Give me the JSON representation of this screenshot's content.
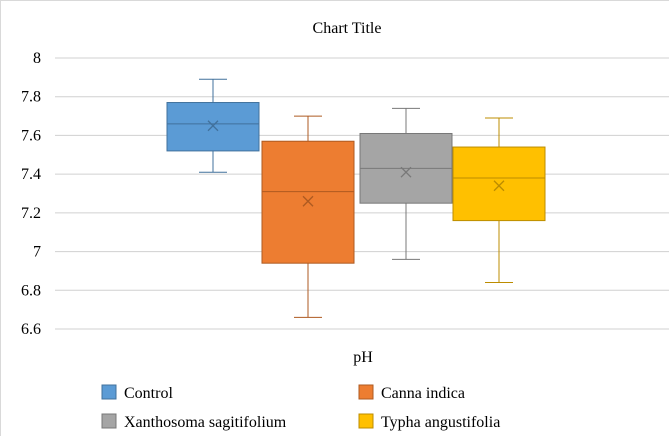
{
  "chart_data": {
    "type": "box",
    "title": "Chart Title",
    "xlabel": "pH",
    "ylabel": "",
    "ylim": [
      6.6,
      8
    ],
    "yticks": [
      "6.6",
      "6.8",
      "7",
      "7.2",
      "7.4",
      "7.6",
      "7.8",
      "8"
    ],
    "grid": true,
    "legend_position": "bottom",
    "series": [
      {
        "name": "Control",
        "color": "#5b9bd5",
        "border": "#41719c",
        "min": 7.41,
        "q1": 7.52,
        "median": 7.66,
        "mean": 7.65,
        "q3": 7.77,
        "max": 7.89
      },
      {
        "name": "Canna indica",
        "color": "#ed7d31",
        "border": "#ae5a21",
        "min": 6.66,
        "q1": 6.94,
        "median": 7.31,
        "mean": 7.26,
        "q3": 7.57,
        "max": 7.7
      },
      {
        "name": "Xanthosoma sagitifolium",
        "color": "#a5a5a5",
        "border": "#787878",
        "min": 6.96,
        "q1": 7.25,
        "median": 7.43,
        "mean": 7.41,
        "q3": 7.61,
        "max": 7.74
      },
      {
        "name": "Typha angustifolia",
        "color": "#ffc000",
        "border": "#bc8c00",
        "min": 6.84,
        "q1": 7.16,
        "median": 7.38,
        "mean": 7.34,
        "q3": 7.54,
        "max": 7.69
      }
    ]
  }
}
